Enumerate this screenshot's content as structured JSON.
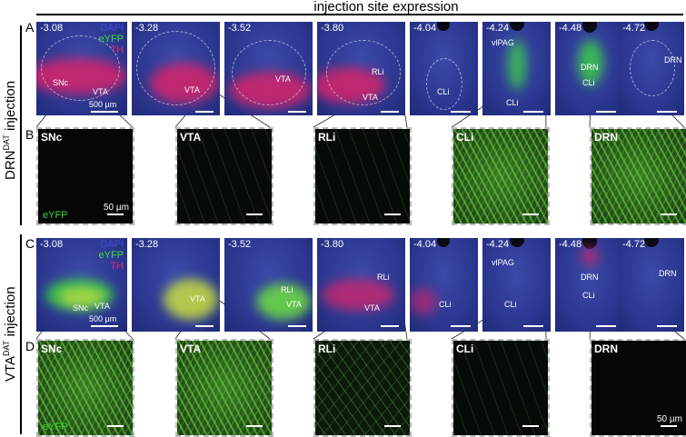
{
  "figure": {
    "title": "injection site expression",
    "scalebar_slice_label": "500 µm",
    "scalebar_zoom_label": "50 µm",
    "legend": {
      "dapi": "DAPI",
      "eyfp": "eYFP",
      "th": "TH",
      "dapi_color": "#3a4cd8",
      "eyfp_color": "#3cdc3c",
      "th_color": "#e0266e"
    },
    "groups": [
      {
        "label_main": "DRN",
        "label_sup": "DAT",
        "label_tail": " injection",
        "slice_row_letter": "A",
        "zoom_row_letter": "B",
        "slices": [
          {
            "coord": "-3.08",
            "regions": [
              "SNc",
              "VTA"
            ]
          },
          {
            "coord": "-3.28",
            "regions": [
              "VTA"
            ]
          },
          {
            "coord": "-3.52",
            "regions": [
              "VTA"
            ]
          },
          {
            "coord": "-3.80",
            "regions": [
              "RLi",
              "VTA"
            ]
          },
          {
            "coord": "-4.04",
            "regions": [
              "CLi"
            ]
          },
          {
            "coord": "-4.24",
            "regions": [
              "vlPAG",
              "CLi"
            ]
          },
          {
            "coord": "-4.48",
            "regions": [
              "DRN",
              "CLi"
            ]
          },
          {
            "coord": "-4.72",
            "regions": [
              "DRN"
            ]
          }
        ],
        "zooms": [
          {
            "label": "SNc",
            "density": "none"
          },
          {
            "label": "VTA",
            "density": "sparse"
          },
          {
            "label": "RLi",
            "density": "sparse"
          },
          {
            "label": "CLi",
            "density": "dense"
          },
          {
            "label": "DRN",
            "density": "dense"
          }
        ]
      },
      {
        "label_main": "VTA",
        "label_sup": "DAT",
        "label_tail": " injection",
        "slice_row_letter": "C",
        "zoom_row_letter": "D",
        "slices": [
          {
            "coord": "-3.08",
            "regions": [
              "SNc",
              "VTA"
            ]
          },
          {
            "coord": "-3.28",
            "regions": [
              "VTA"
            ]
          },
          {
            "coord": "-3.52",
            "regions": [
              "RLi",
              "VTA"
            ]
          },
          {
            "coord": "-3.80",
            "regions": [
              "RLi",
              "VTA"
            ]
          },
          {
            "coord": "-4.04",
            "regions": [
              "CLi"
            ]
          },
          {
            "coord": "-4.24",
            "regions": [
              "vlPAG",
              "CLi"
            ]
          },
          {
            "coord": "-4.48",
            "regions": [
              "DRN",
              "CLi"
            ]
          },
          {
            "coord": "-4.72",
            "regions": [
              "DRN"
            ]
          }
        ],
        "zooms": [
          {
            "label": "SNc",
            "density": "dense"
          },
          {
            "label": "VTA",
            "density": "dense"
          },
          {
            "label": "RLi",
            "density": "med"
          },
          {
            "label": "CLi",
            "density": "sparse"
          },
          {
            "label": "DRN",
            "density": "none"
          }
        ]
      }
    ]
  }
}
